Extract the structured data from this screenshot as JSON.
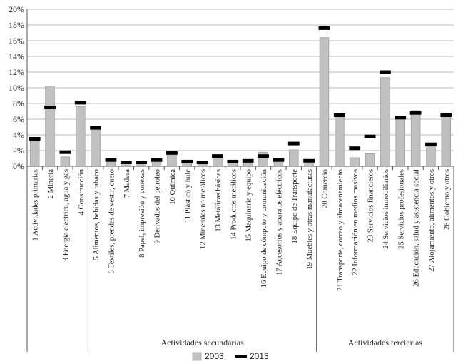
{
  "chart_data": {
    "type": "bar",
    "title": "",
    "xlabel": "",
    "ylabel": "",
    "ylim": [
      0,
      20
    ],
    "y_ticks": [
      "0%",
      "2%",
      "4%",
      "6%",
      "8%",
      "10%",
      "12%",
      "14%",
      "16%",
      "18%",
      "20%"
    ],
    "grid": "horizontal",
    "legend_position": "bottom-right",
    "categories": [
      "1 Actividades primarias",
      "2 Minería",
      "3 Energía eléctrica, agua y gas",
      "4 Construcción",
      "5 Alimentos, bebidas y tabaco",
      "6 Textiles, prendas de vestir, cuero",
      "7 Madera",
      "8 Papel, impresión y conexas",
      "9 Derivados del petroleo",
      "10 Química",
      "11 Plástico y hule",
      "12 Minerales no metálicos",
      "13 Metálicas básicas",
      "14 Productos metálicos",
      "15 Maquinaria y equipo",
      "16 Equipo de cómputo y comunicación",
      "17 Accesorios y aparatos eléctricos",
      "18 Equipo de Transporte",
      "19 Muebles y otras manufacturas",
      "20 Comercio",
      "21 Transporte, correo y almacenamiento",
      "22 Información en medios masivos",
      "23 Servicios financieros",
      "24 Servicios inmobiliarios",
      "25 Servicios profesionales",
      "26 Educación, salud y asistencia social",
      "27 Alojamiento, alimentos y otros",
      "28 Gobierno y otros"
    ],
    "series": [
      {
        "name": "2003",
        "kind": "bar",
        "color": "#c0c0c0",
        "values": [
          3.2,
          10.2,
          1.2,
          7.6,
          4.8,
          0.8,
          0.2,
          0.3,
          0.7,
          1.8,
          0.4,
          0.4,
          1.5,
          0.7,
          0.5,
          1.8,
          0.9,
          2.1,
          0.4,
          16.4,
          6.3,
          1.1,
          1.6,
          11.3,
          6.0,
          7.1,
          2.5,
          6.8
        ]
      },
      {
        "name": "2013",
        "kind": "marker",
        "color": "#000000",
        "values": [
          3.5,
          7.5,
          1.8,
          8.1,
          4.9,
          0.8,
          0.5,
          0.5,
          0.8,
          1.7,
          0.6,
          0.5,
          1.3,
          0.6,
          0.7,
          1.3,
          0.8,
          2.9,
          0.7,
          17.6,
          6.5,
          2.3,
          3.8,
          12.0,
          6.2,
          6.8,
          2.8,
          6.5
        ]
      }
    ],
    "groups": [
      {
        "label": "Actividades secundarias",
        "from": 4,
        "to": 18
      },
      {
        "label": "Actividades terciarias",
        "from": 19,
        "to": 27
      }
    ]
  }
}
